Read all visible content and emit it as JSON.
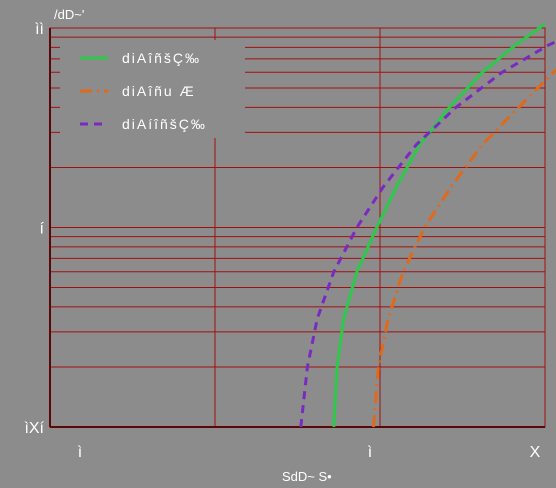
{
  "chart_data": {
    "type": "line",
    "y_scale": "log",
    "ylim": [
      0.1,
      10
    ],
    "xlim": [
      0,
      3
    ],
    "grid": true,
    "x_ticks": [
      {
        "value": 1,
        "label": "ì"
      },
      {
        "value": 2,
        "label": "ì"
      },
      {
        "value": 3,
        "label": "X"
      }
    ],
    "y_ticks": [
      {
        "value": 10,
        "label": "ìì"
      },
      {
        "value": 1,
        "label": "í"
      },
      {
        "value": 0.1,
        "label": "ìXí"
      }
    ],
    "ylabel": "/dD~'",
    "xlabel": "SdD~ S•",
    "legend_position": "top-left",
    "colors": {
      "background": "#8c8c8c",
      "grid": "#a01010",
      "axis": "#5a0808",
      "text": "#ffffff"
    },
    "series": [
      {
        "name": "diAîñšÇ‰",
        "color": "#2ec84a",
        "dash": "solid",
        "x": [
          1.72,
          1.74,
          1.78,
          1.86,
          1.98,
          2.1,
          2.24,
          2.42,
          2.62,
          2.82,
          3.0
        ],
        "y": [
          0.1,
          0.2,
          0.35,
          0.6,
          1.0,
          1.6,
          2.6,
          4.0,
          6.0,
          8.2,
          10.5
        ]
      },
      {
        "name": "diAîñu Æ",
        "color": "#e06a1a",
        "dash": "dashdot",
        "x": [
          1.96,
          1.99,
          2.05,
          2.14,
          2.27,
          2.43,
          2.62,
          2.84,
          3.05,
          3.25,
          3.42
        ],
        "y": [
          0.1,
          0.2,
          0.35,
          0.6,
          1.0,
          1.6,
          2.6,
          4.0,
          6.0,
          8.2,
          10.5
        ]
      },
      {
        "name": "diAíîñšÇ‰",
        "color": "#7a2ac0",
        "dash": "dashed",
        "x": [
          1.52,
          1.56,
          1.62,
          1.72,
          1.86,
          2.02,
          2.22,
          2.46,
          2.74,
          3.02,
          3.3
        ],
        "y": [
          0.1,
          0.2,
          0.35,
          0.6,
          1.0,
          1.6,
          2.6,
          4.0,
          6.0,
          8.2,
          10.5
        ]
      }
    ]
  }
}
